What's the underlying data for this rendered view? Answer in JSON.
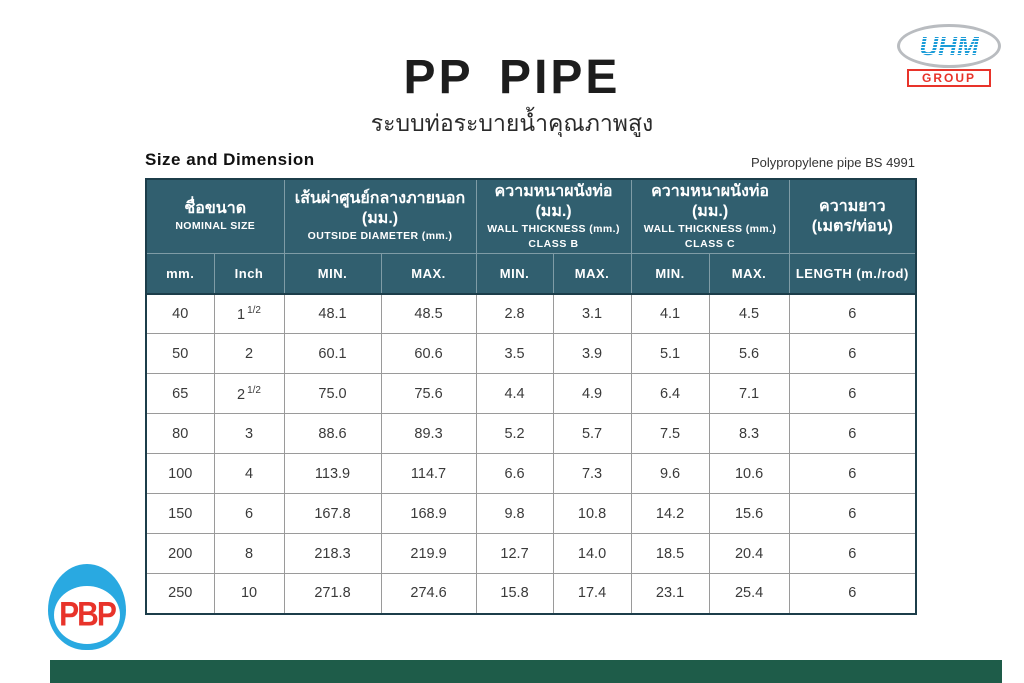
{
  "header": {
    "title": "PP PIPE",
    "subtitle_thai": "ระบบท่อระบายน้ำคุณภาพสูง"
  },
  "section": {
    "title": "Size and Dimension",
    "note": "Polypropylene pipe BS 4991"
  },
  "logos": {
    "uhm_text": "UHM",
    "uhm_group_text": "GROUP",
    "pbp_text": "PBP"
  },
  "colors": {
    "header_teal": "#315f6f",
    "table_border_dark": "#1c3d4a",
    "bottom_bar_green": "#1e5c49",
    "uhm_blue": "#1b9cd8",
    "logo_red": "#e8332a",
    "pbp_blue": "#29a9e1"
  },
  "table": {
    "groups": [
      {
        "thai": "ชื่อขนาด",
        "eng": "NOMINAL SIZE",
        "class_line": ""
      },
      {
        "thai": "เส้นผ่าศูนย์กลางภายนอก (มม.)",
        "eng": "OUTSIDE  DIAMETER  (mm.)",
        "class_line": ""
      },
      {
        "thai": "ความหนาผนังท่อ (มม.)",
        "eng": "WALL  THICKNESS  (mm.)",
        "class_line": "CLASS  B"
      },
      {
        "thai": "ความหนาผนังท่อ (มม.)",
        "eng": "WALL  THICKNESS  (mm.)",
        "class_line": "CLASS  C"
      },
      {
        "thai": "ความยาว",
        "thai2": "(เมตร/ท่อน)"
      }
    ],
    "subheaders": [
      "mm.",
      "Inch",
      "MIN.",
      "MAX.",
      "MIN.",
      "MAX.",
      "MIN.",
      "MAX.",
      "LENGTH  (m./rod)"
    ],
    "rows": [
      {
        "mm": "40",
        "inch": "1",
        "inch_frac": "1/2",
        "values": [
          "48.1",
          "48.5",
          "2.8",
          "3.1",
          "4.1",
          "4.5",
          "6"
        ]
      },
      {
        "mm": "50",
        "inch": "2",
        "inch_frac": "",
        "values": [
          "60.1",
          "60.6",
          "3.5",
          "3.9",
          "5.1",
          "5.6",
          "6"
        ]
      },
      {
        "mm": "65",
        "inch": "2",
        "inch_frac": "1/2",
        "values": [
          "75.0",
          "75.6",
          "4.4",
          "4.9",
          "6.4",
          "7.1",
          "6"
        ]
      },
      {
        "mm": "80",
        "inch": "3",
        "inch_frac": "",
        "values": [
          "88.6",
          "89.3",
          "5.2",
          "5.7",
          "7.5",
          "8.3",
          "6"
        ]
      },
      {
        "mm": "100",
        "inch": "4",
        "inch_frac": "",
        "values": [
          "113.9",
          "114.7",
          "6.6",
          "7.3",
          "9.6",
          "10.6",
          "6"
        ]
      },
      {
        "mm": "150",
        "inch": "6",
        "inch_frac": "",
        "values": [
          "167.8",
          "168.9",
          "9.8",
          "10.8",
          "14.2",
          "15.6",
          "6"
        ]
      },
      {
        "mm": "200",
        "inch": "8",
        "inch_frac": "",
        "values": [
          "218.3",
          "219.9",
          "12.7",
          "14.0",
          "18.5",
          "20.4",
          "6"
        ]
      },
      {
        "mm": "250",
        "inch": "10",
        "inch_frac": "",
        "values": [
          "271.8",
          "274.6",
          "15.8",
          "17.4",
          "23.1",
          "25.4",
          "6"
        ]
      }
    ]
  }
}
